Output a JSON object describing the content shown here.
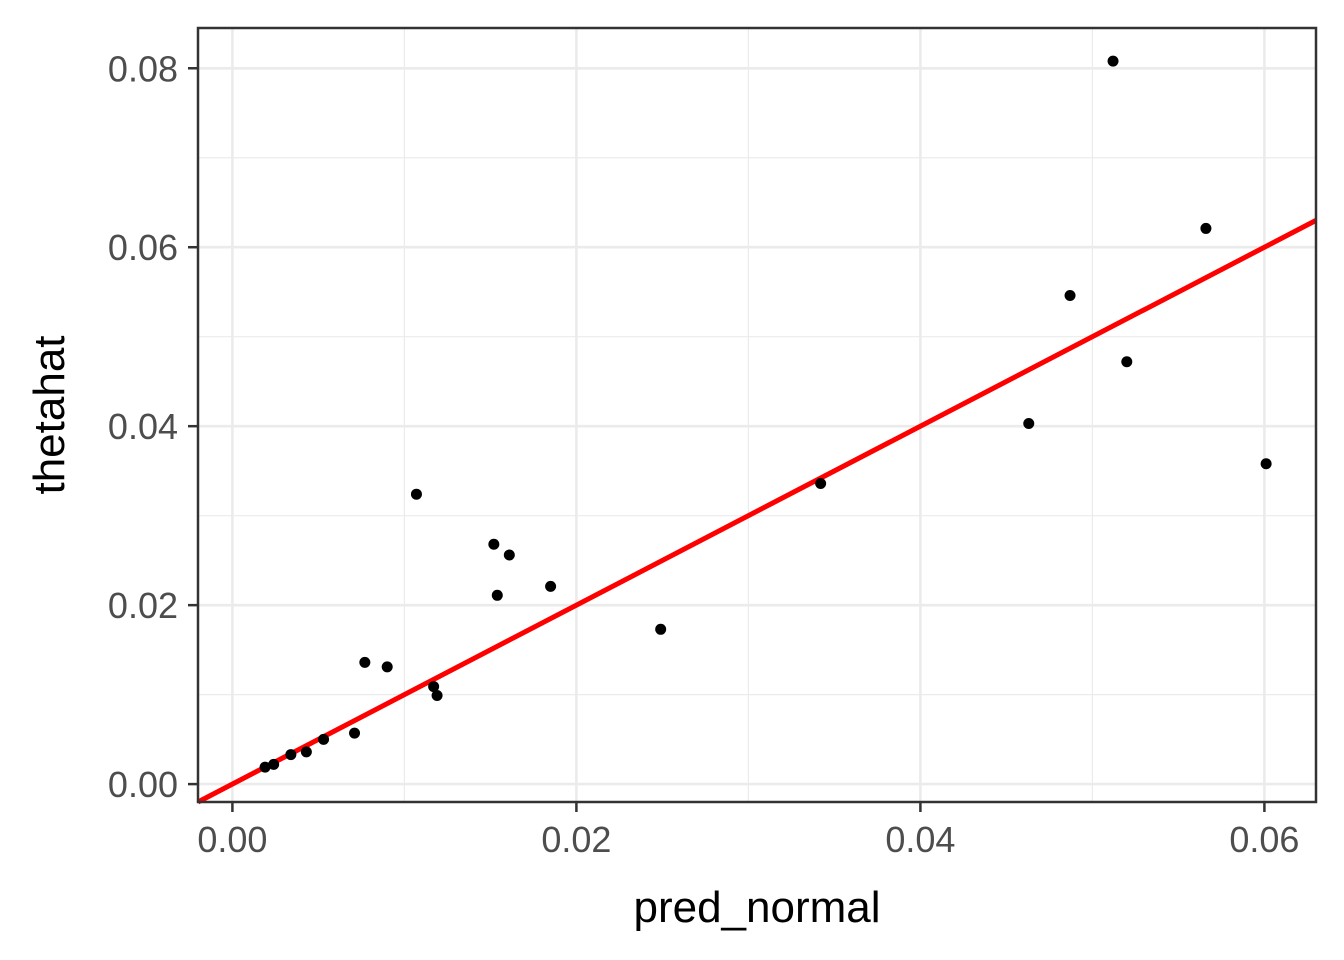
{
  "chart_data": {
    "type": "scatter",
    "title": "",
    "xlabel": "pred_normal",
    "ylabel": "thetahat",
    "xlim": [
      -0.002,
      0.063
    ],
    "ylim": [
      -0.002,
      0.0845
    ],
    "x_major_ticks": [
      0.0,
      0.02,
      0.04,
      0.06
    ],
    "x_tick_labels": [
      "0.00",
      "0.02",
      "0.04",
      "0.06"
    ],
    "y_major_ticks": [
      0.0,
      0.02,
      0.04,
      0.06,
      0.08
    ],
    "y_tick_labels": [
      "0.00",
      "0.02",
      "0.04",
      "0.06",
      "0.08"
    ],
    "x_minor_ticks": [
      0.01,
      0.03,
      0.05
    ],
    "y_minor_ticks": [
      0.01,
      0.03,
      0.05,
      0.07
    ],
    "grid": true,
    "theme": "bw",
    "points": [
      {
        "x": 0.0019,
        "y": 0.0019
      },
      {
        "x": 0.0024,
        "y": 0.0022
      },
      {
        "x": 0.0034,
        "y": 0.0033
      },
      {
        "x": 0.0043,
        "y": 0.0036
      },
      {
        "x": 0.0053,
        "y": 0.005
      },
      {
        "x": 0.0071,
        "y": 0.0057
      },
      {
        "x": 0.0077,
        "y": 0.0136
      },
      {
        "x": 0.009,
        "y": 0.0131
      },
      {
        "x": 0.0107,
        "y": 0.0324
      },
      {
        "x": 0.0117,
        "y": 0.0109
      },
      {
        "x": 0.0119,
        "y": 0.0099
      },
      {
        "x": 0.0152,
        "y": 0.0268
      },
      {
        "x": 0.0154,
        "y": 0.0211
      },
      {
        "x": 0.0161,
        "y": 0.0256
      },
      {
        "x": 0.0185,
        "y": 0.0221
      },
      {
        "x": 0.0249,
        "y": 0.0173
      },
      {
        "x": 0.0342,
        "y": 0.0336
      },
      {
        "x": 0.0463,
        "y": 0.0403
      },
      {
        "x": 0.0487,
        "y": 0.0546
      },
      {
        "x": 0.0512,
        "y": 0.0808
      },
      {
        "x": 0.052,
        "y": 0.0472
      },
      {
        "x": 0.0566,
        "y": 0.0621
      },
      {
        "x": 0.0601,
        "y": 0.0358
      }
    ],
    "line": {
      "slope": 1,
      "intercept": 0,
      "color": "#ff0000"
    },
    "point_color": "#000000"
  }
}
